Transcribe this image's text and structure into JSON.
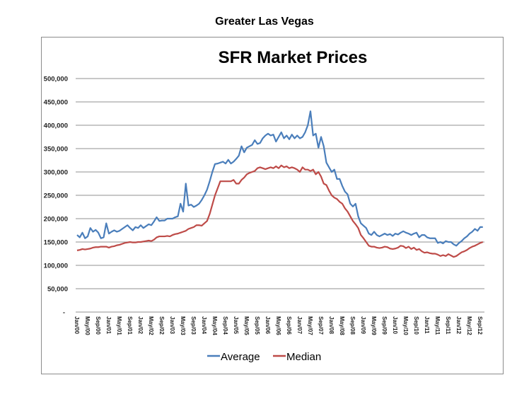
{
  "page_title": "Greater Las Vegas",
  "chart_data": {
    "type": "line",
    "title": "SFR Market Prices",
    "xlabel": "",
    "ylabel": "",
    "ylim": [
      0,
      500000
    ],
    "y_ticks": [
      "-",
      "50,000",
      "100,000",
      "150,000",
      "200,000",
      "250,000",
      "300,000",
      "350,000",
      "400,000",
      "450,000",
      "500,000"
    ],
    "x_start": "Jan/00",
    "x_tick_labels": [
      "Jan/00",
      "May/00",
      "Sep/00",
      "Jan/01",
      "May/01",
      "Sep/01",
      "Jan/02",
      "May/02",
      "Sep/02",
      "Jan/03",
      "May/03",
      "Sep/03",
      "Jan/04",
      "May/04",
      "Sep/04",
      "Jan/05",
      "May/05",
      "Sep/05",
      "Jan/06",
      "May/06",
      "Sep/06",
      "Jan/07",
      "May/07",
      "Sep/07",
      "Jan/08",
      "May/08",
      "Sep/08",
      "Jan/09",
      "May/09",
      "Sep/09",
      "Jan/10",
      "May/10",
      "Sep/10",
      "Jan/11",
      "May/11",
      "Sep/11",
      "Jan/12",
      "May/12",
      "Sep/12"
    ],
    "grid": true,
    "legend_position": "bottom",
    "series": [
      {
        "name": "Average",
        "color": "#4a7ebb",
        "values": [
          165000,
          160000,
          170000,
          158000,
          162000,
          180000,
          172000,
          176000,
          170000,
          158000,
          160000,
          190000,
          168000,
          172000,
          175000,
          172000,
          174000,
          178000,
          182000,
          186000,
          180000,
          175000,
          182000,
          180000,
          186000,
          180000,
          184000,
          188000,
          186000,
          194000,
          203000,
          195000,
          196000,
          196000,
          200000,
          200000,
          200000,
          203000,
          205000,
          232000,
          215000,
          275000,
          228000,
          230000,
          225000,
          228000,
          232000,
          240000,
          250000,
          262000,
          280000,
          300000,
          317000,
          318000,
          320000,
          322000,
          318000,
          326000,
          318000,
          322000,
          328000,
          335000,
          355000,
          342000,
          352000,
          355000,
          358000,
          368000,
          360000,
          362000,
          372000,
          378000,
          382000,
          378000,
          380000,
          365000,
          375000,
          385000,
          372000,
          378000,
          370000,
          380000,
          372000,
          378000,
          372000,
          375000,
          385000,
          400000,
          430000,
          378000,
          382000,
          352000,
          375000,
          355000,
          320000,
          310000,
          300000,
          305000,
          285000,
          285000,
          270000,
          258000,
          252000,
          232000,
          226000,
          232000,
          205000,
          190000,
          185000,
          180000,
          168000,
          165000,
          172000,
          165000,
          162000,
          165000,
          168000,
          165000,
          167000,
          163000,
          168000,
          166000,
          170000,
          173000,
          170000,
          168000,
          165000,
          168000,
          170000,
          160000,
          165000,
          165000,
          160000,
          158000,
          158000,
          158000,
          148000,
          150000,
          147000,
          152000,
          150000,
          150000,
          145000,
          142000,
          148000,
          152000,
          158000,
          162000,
          168000,
          172000,
          178000,
          174000,
          182000,
          182000
        ]
      },
      {
        "name": "Median",
        "color": "#be4b48",
        "values": [
          132000,
          133000,
          135000,
          134000,
          135000,
          136000,
          138000,
          139000,
          139000,
          140000,
          140000,
          140000,
          138000,
          140000,
          141000,
          143000,
          144000,
          146000,
          148000,
          149000,
          150000,
          149000,
          149000,
          150000,
          150000,
          151000,
          152000,
          153000,
          152000,
          155000,
          160000,
          162000,
          162000,
          162000,
          163000,
          162000,
          165000,
          167000,
          168000,
          170000,
          172000,
          174000,
          178000,
          180000,
          182000,
          186000,
          186000,
          185000,
          190000,
          195000,
          210000,
          230000,
          250000,
          265000,
          280000,
          280000,
          280000,
          280000,
          280000,
          283000,
          275000,
          275000,
          283000,
          288000,
          295000,
          298000,
          300000,
          302000,
          308000,
          310000,
          308000,
          306000,
          308000,
          310000,
          308000,
          312000,
          308000,
          314000,
          310000,
          312000,
          308000,
          310000,
          308000,
          305000,
          300000,
          310000,
          305000,
          305000,
          302000,
          305000,
          295000,
          300000,
          290000,
          275000,
          272000,
          260000,
          250000,
          245000,
          242000,
          236000,
          232000,
          222000,
          215000,
          205000,
          195000,
          188000,
          180000,
          165000,
          158000,
          150000,
          142000,
          140000,
          140000,
          138000,
          137000,
          138000,
          140000,
          139000,
          136000,
          135000,
          136000,
          138000,
          142000,
          141000,
          137000,
          140000,
          135000,
          138000,
          133000,
          135000,
          130000,
          127000,
          128000,
          126000,
          125000,
          125000,
          123000,
          120000,
          122000,
          120000,
          124000,
          121000,
          118000,
          120000,
          124000,
          128000,
          130000,
          133000,
          137000,
          140000,
          142000,
          145000,
          148000,
          150000
        ]
      }
    ]
  }
}
